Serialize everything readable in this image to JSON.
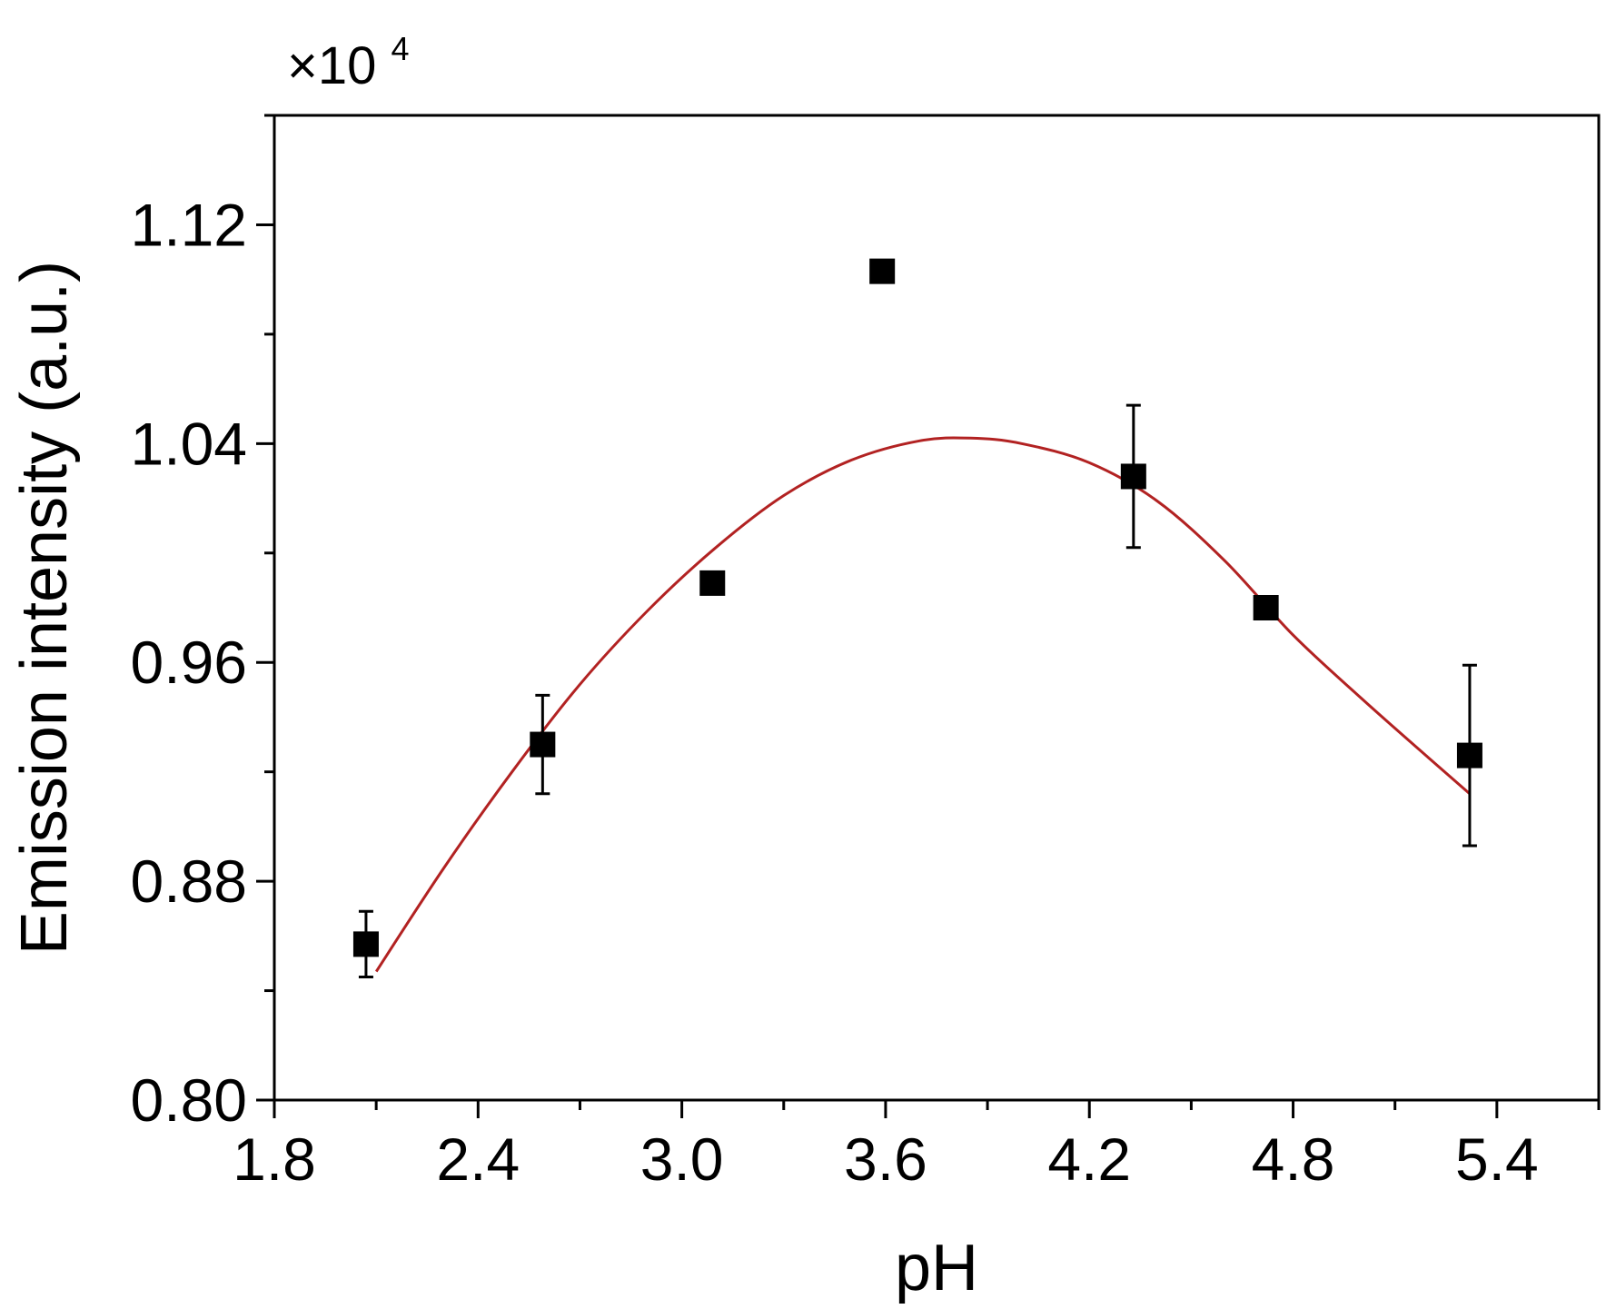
{
  "chart_data": {
    "type": "scatter",
    "title": "",
    "xlabel": "pH",
    "ylabel": "Emission intensity (a.u.)",
    "y_multiplier": {
      "base": "×10",
      "exponent": "4"
    },
    "xlim": [
      1.8,
      5.7
    ],
    "ylim": [
      0.8,
      1.16
    ],
    "x_ticks": [
      1.8,
      2.4,
      3.0,
      3.6,
      4.2,
      4.8,
      5.4
    ],
    "x_tick_labels": [
      "1.8",
      "2.4",
      "3.0",
      "3.6",
      "4.2",
      "4.8",
      "5.4"
    ],
    "x_minor_ticks": [
      2.1,
      2.7,
      3.3,
      3.9,
      4.5,
      5.1,
      5.7
    ],
    "y_ticks": [
      0.8,
      0.88,
      0.96,
      1.04,
      1.12
    ],
    "y_tick_labels": [
      "0.80",
      "0.88",
      "0.96",
      "1.04",
      "1.12"
    ],
    "y_minor_ticks": [
      0.84,
      0.92,
      1.0,
      1.08,
      1.16
    ],
    "grid": false,
    "legend": false,
    "series": [
      {
        "kind": "points_with_error_bars",
        "marker": "square",
        "color": "#000000",
        "points": [
          {
            "x": 2.07,
            "y": 0.857,
            "err": 0.012
          },
          {
            "x": 2.59,
            "y": 0.93,
            "err": 0.018
          },
          {
            "x": 3.09,
            "y": 0.989,
            "err": 0.004
          },
          {
            "x": 3.59,
            "y": 1.103,
            "err": 0.002
          },
          {
            "x": 4.33,
            "y": 1.028,
            "err": 0.026
          },
          {
            "x": 4.72,
            "y": 0.98,
            "err": 0.002
          },
          {
            "x": 5.32,
            "y": 0.926,
            "err": 0.033
          }
        ]
      },
      {
        "kind": "fit_curve",
        "color": "#B22222",
        "points": [
          {
            "x": 2.1,
            "y": 0.847
          },
          {
            "x": 2.3,
            "y": 0.885
          },
          {
            "x": 2.5,
            "y": 0.92
          },
          {
            "x": 2.7,
            "y": 0.952
          },
          {
            "x": 2.9,
            "y": 0.979
          },
          {
            "x": 3.1,
            "y": 1.002
          },
          {
            "x": 3.3,
            "y": 1.021
          },
          {
            "x": 3.5,
            "y": 1.034
          },
          {
            "x": 3.7,
            "y": 1.041
          },
          {
            "x": 3.85,
            "y": 1.042
          },
          {
            "x": 4.0,
            "y": 1.04
          },
          {
            "x": 4.2,
            "y": 1.033
          },
          {
            "x": 4.4,
            "y": 1.019
          },
          {
            "x": 4.6,
            "y": 0.997
          },
          {
            "x": 4.8,
            "y": 0.97
          },
          {
            "x": 5.0,
            "y": 0.947
          },
          {
            "x": 5.2,
            "y": 0.925
          },
          {
            "x": 5.32,
            "y": 0.912
          }
        ]
      }
    ]
  }
}
